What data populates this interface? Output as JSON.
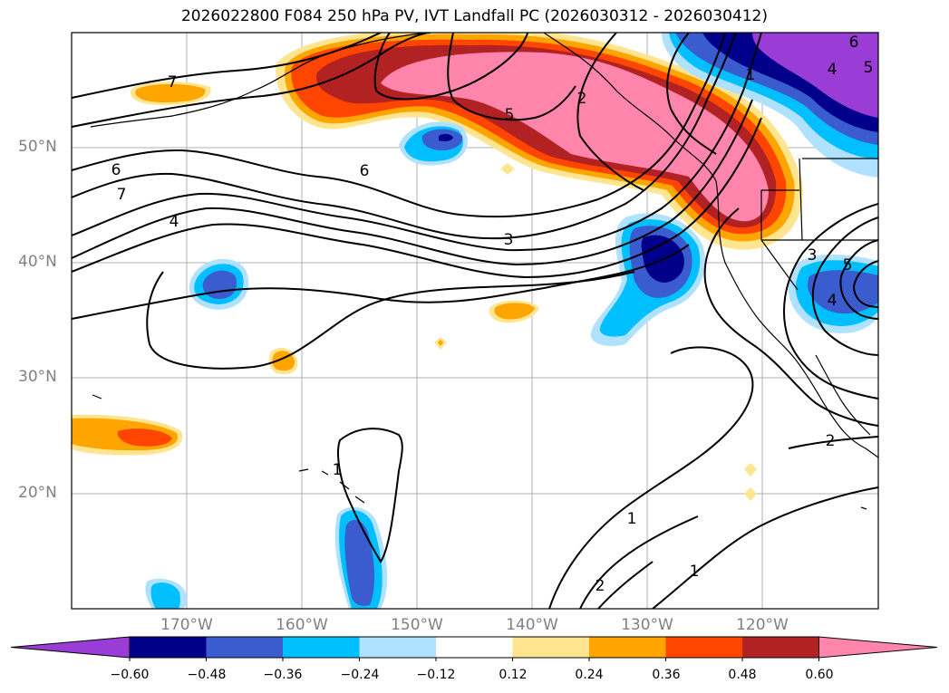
{
  "title": "2026022800 F084 250 hPa PV, IVT Landfall PC (2026030312 - 2026030412)",
  "lat_labels": [
    "50°N",
    "40°N",
    "30°N",
    "20°N"
  ],
  "lon_labels": [
    "170°W",
    "160°W",
    "150°W",
    "140°W",
    "130°W",
    "120°W"
  ],
  "contour_labels": [
    "7",
    "6",
    "7",
    "4",
    "6",
    "5",
    "2",
    "3",
    "1",
    "5",
    "4",
    "6",
    "5",
    "3",
    "4",
    "2",
    "1",
    "1",
    "2",
    "1"
  ],
  "colorbar": {
    "ticks": [
      "−0.60",
      "−0.48",
      "−0.36",
      "−0.24",
      "−0.12",
      "0.12",
      "0.24",
      "0.36",
      "0.48",
      "0.60"
    ],
    "colors": [
      "#9a3cd6",
      "#00008b",
      "#3a5ccf",
      "#00bfff",
      "#b0e2ff",
      "#ffffff",
      "#ffe58f",
      "#ffa500",
      "#ff4500",
      "#b22222",
      "#ff85ad"
    ]
  }
}
